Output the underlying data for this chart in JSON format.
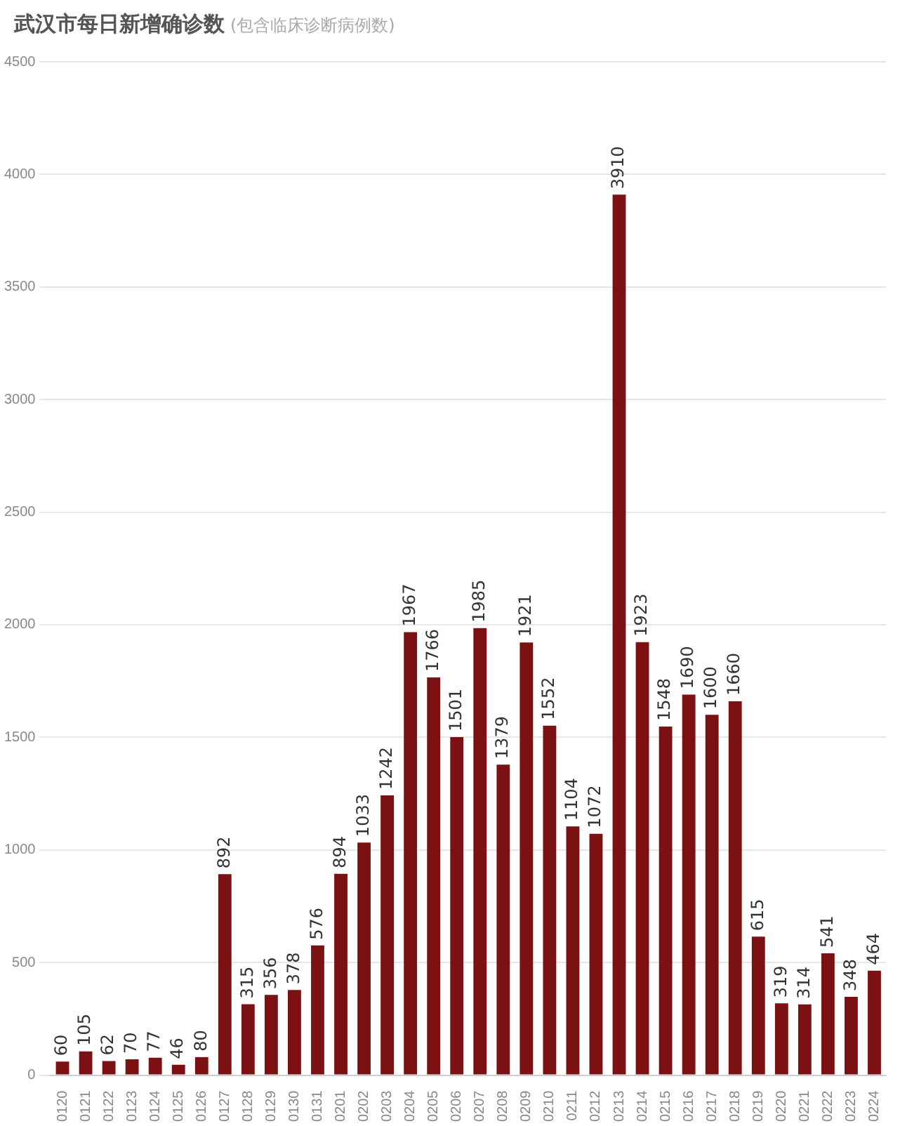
{
  "chart_data": {
    "type": "bar",
    "title": "武汉市每日新增确诊数",
    "subtitle": "(包含临床诊断病例数)",
    "categories": [
      "0120",
      "0121",
      "0122",
      "0123",
      "0124",
      "0125",
      "0126",
      "0127",
      "0128",
      "0129",
      "0130",
      "0131",
      "0201",
      "0202",
      "0203",
      "0204",
      "0205",
      "0206",
      "0207",
      "0208",
      "0209",
      "0210",
      "0211",
      "0212",
      "0213",
      "0214",
      "0215",
      "0216",
      "0217",
      "0218",
      "0219",
      "0220",
      "0221",
      "0222",
      "0223",
      "0224"
    ],
    "values": [
      60,
      105,
      62,
      70,
      77,
      46,
      80,
      892,
      315,
      356,
      378,
      576,
      894,
      1033,
      1242,
      1967,
      1766,
      1501,
      1985,
      1379,
      1921,
      1552,
      1104,
      1072,
      3910,
      1923,
      1548,
      1690,
      1600,
      1660,
      615,
      319,
      314,
      541,
      348,
      464
    ],
    "color": "#7b1113",
    "ylim": [
      0,
      4500
    ],
    "yticks": [
      0,
      500,
      1000,
      1500,
      2000,
      2500,
      3000,
      3500,
      4000,
      4500
    ],
    "grid": "y",
    "data_labels": true,
    "legend": false
  }
}
